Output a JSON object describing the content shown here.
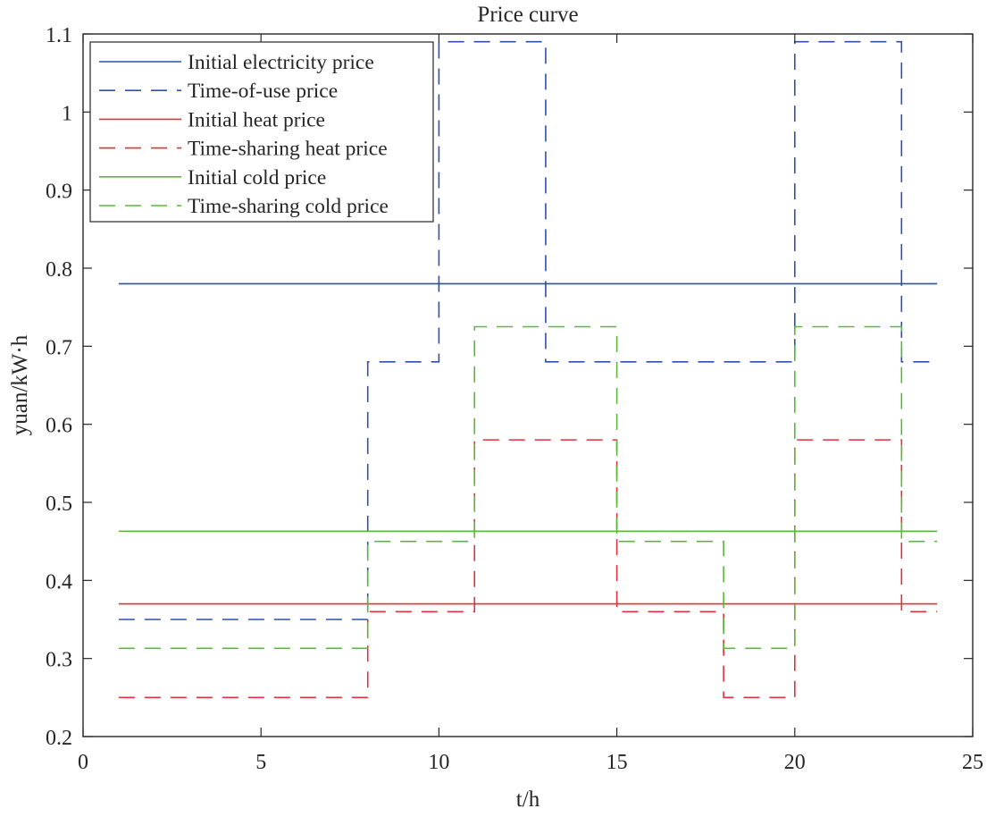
{
  "chart_data": {
    "type": "line",
    "title": "Price curve",
    "xlabel": "t/h",
    "ylabel": "yuan/kW·h",
    "xlim": [
      0,
      25
    ],
    "ylim": [
      0.2,
      1.1
    ],
    "xticks": [
      0,
      5,
      10,
      15,
      20,
      25
    ],
    "xtick_labels": [
      "0",
      "5",
      "10",
      "15",
      "20",
      "25"
    ],
    "yticks": [
      0.2,
      0.3,
      0.4,
      0.5,
      0.6,
      0.7,
      0.8,
      0.9,
      1.0,
      1.1
    ],
    "ytick_labels": [
      "0.2",
      "0.3",
      "0.4",
      "0.5",
      "0.6",
      "0.7",
      "0.8",
      "0.9",
      "1",
      "1.1"
    ],
    "grid": false,
    "legend_position": "upper left",
    "step": true,
    "x": [
      1,
      2,
      3,
      4,
      5,
      6,
      7,
      8,
      9,
      10,
      11,
      12,
      13,
      14,
      15,
      16,
      17,
      18,
      19,
      20,
      21,
      22,
      23,
      24
    ],
    "series": [
      {
        "name": "Initial electricity price",
        "color": "#2f4fa8",
        "style": "solid",
        "values": [
          0.78,
          0.78,
          0.78,
          0.78,
          0.78,
          0.78,
          0.78,
          0.78,
          0.78,
          0.78,
          0.78,
          0.78,
          0.78,
          0.78,
          0.78,
          0.78,
          0.78,
          0.78,
          0.78,
          0.78,
          0.78,
          0.78,
          0.78,
          0.78
        ]
      },
      {
        "name": "Time-of-use price",
        "color": "#2f4fa8",
        "style": "dashed",
        "values": [
          0.35,
          0.35,
          0.35,
          0.35,
          0.35,
          0.35,
          0.35,
          0.68,
          0.68,
          1.09,
          1.09,
          1.09,
          0.68,
          0.68,
          0.68,
          0.68,
          0.68,
          0.68,
          0.68,
          1.09,
          1.09,
          1.09,
          0.68,
          0.68
        ]
      },
      {
        "name": "Initial heat price",
        "color": "#e0323c",
        "style": "solid",
        "values": [
          0.37,
          0.37,
          0.37,
          0.37,
          0.37,
          0.37,
          0.37,
          0.37,
          0.37,
          0.37,
          0.37,
          0.37,
          0.37,
          0.37,
          0.37,
          0.37,
          0.37,
          0.37,
          0.37,
          0.37,
          0.37,
          0.37,
          0.37,
          0.37
        ]
      },
      {
        "name": "Time-sharing heat price",
        "color": "#e0323c",
        "style": "dashed",
        "values": [
          0.25,
          0.25,
          0.25,
          0.25,
          0.25,
          0.25,
          0.25,
          0.36,
          0.36,
          0.36,
          0.58,
          0.58,
          0.58,
          0.58,
          0.36,
          0.36,
          0.36,
          0.25,
          0.25,
          0.58,
          0.58,
          0.58,
          0.36,
          0.36
        ]
      },
      {
        "name": "Initial cold price",
        "color": "#5cb83a",
        "style": "solid",
        "values": [
          0.463,
          0.463,
          0.463,
          0.463,
          0.463,
          0.463,
          0.463,
          0.463,
          0.463,
          0.463,
          0.463,
          0.463,
          0.463,
          0.463,
          0.463,
          0.463,
          0.463,
          0.463,
          0.463,
          0.463,
          0.463,
          0.463,
          0.463,
          0.463
        ]
      },
      {
        "name": "Time-sharing cold price",
        "color": "#5cb83a",
        "style": "dashed",
        "values": [
          0.313,
          0.313,
          0.313,
          0.313,
          0.313,
          0.313,
          0.313,
          0.45,
          0.45,
          0.45,
          0.725,
          0.725,
          0.725,
          0.725,
          0.45,
          0.45,
          0.45,
          0.313,
          0.313,
          0.725,
          0.725,
          0.725,
          0.45,
          0.45
        ]
      }
    ]
  }
}
